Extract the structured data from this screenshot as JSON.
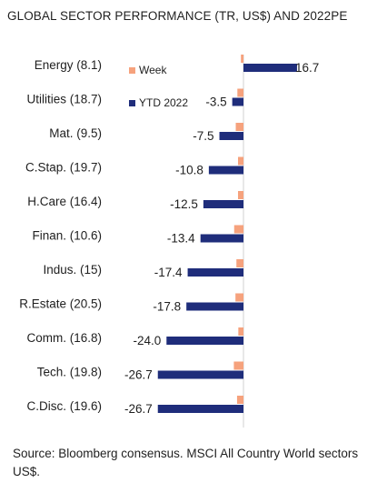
{
  "title": "GLOBAL SECTOR PERFORMANCE (TR, US$) AND 2022PE",
  "source": "Source: Bloomberg consensus. MSCI All Country World sectors US$.",
  "colors": {
    "week": "#F6A27D",
    "ytd": "#1F2D7B"
  },
  "chart_data": {
    "type": "bar",
    "orientation": "horizontal",
    "categories": [
      "Energy (8.1)",
      "Utilities (18.7)",
      "Mat. (9.5)",
      "C.Stap. (19.7)",
      "H.Care (16.4)",
      "Finan. (10.6)",
      "Indus. (15)",
      "R.Estate (20.5)",
      "Comm. (16.8)",
      "Tech. (19.8)",
      "C.Disc. (19.6)"
    ],
    "series": [
      {
        "name": "Week",
        "values": [
          -0.8,
          -1.9,
          -2.4,
          -1.7,
          -1.7,
          -2.9,
          -2.2,
          -2.5,
          -1.6,
          -3.0,
          -2.0
        ]
      },
      {
        "name": "YTD 2022",
        "values": [
          16.7,
          -3.5,
          -7.5,
          -10.8,
          -12.5,
          -13.4,
          -17.4,
          -17.8,
          -24.0,
          -26.7,
          -26.7
        ]
      }
    ],
    "data_labels": [
      "16.7",
      "-3.5",
      "-7.5",
      "-10.8",
      "-12.5",
      "-13.4",
      "-17.4",
      "-17.8",
      "-24.0",
      "-26.7",
      "-26.7"
    ],
    "legend_position": "top-center",
    "title": "GLOBAL SECTOR PERFORMANCE (TR, US$) AND 2022PE"
  }
}
